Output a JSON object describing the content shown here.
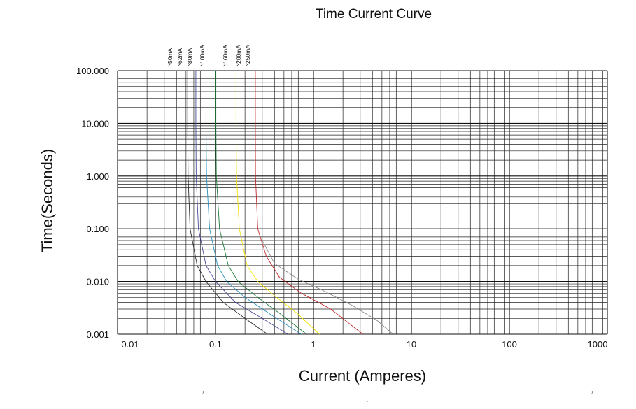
{
  "chart_data": {
    "type": "line",
    "title": "Time Current Curve",
    "xlabel": "Current (Amperes)",
    "ylabel": "Time(Seconds)",
    "x_scale": "log",
    "y_scale": "log",
    "xlim": [
      0.01,
      1000
    ],
    "ylim": [
      0.001,
      100
    ],
    "grid": true,
    "x_ticks": [
      {
        "value": 0.01,
        "label": "0.01"
      },
      {
        "value": 0.1,
        "label": "0.1"
      },
      {
        "value": 1,
        "label": "1"
      },
      {
        "value": 10,
        "label": "10"
      },
      {
        "value": 100,
        "label": "100"
      },
      {
        "value": 1000,
        "label": "1000"
      }
    ],
    "y_ticks": [
      {
        "value": 100,
        "label": "100.000"
      },
      {
        "value": 10,
        "label": "10.000"
      },
      {
        "value": 1,
        "label": "1.000"
      },
      {
        "value": 0.1,
        "label": "0.100"
      },
      {
        "value": 0.01,
        "label": "0.010"
      },
      {
        "value": 0.001,
        "label": "0.001"
      }
    ],
    "series": [
      {
        "name": "50mA",
        "color": "#2a2a2a",
        "points": [
          [
            0.052,
            100
          ],
          [
            0.052,
            10
          ],
          [
            0.0525,
            1
          ],
          [
            0.055,
            0.1
          ],
          [
            0.065,
            0.02
          ],
          [
            0.08,
            0.01
          ],
          [
            0.12,
            0.004
          ],
          [
            0.2,
            0.002
          ],
          [
            0.34,
            0.001
          ]
        ]
      },
      {
        "name": "62mA",
        "color": "#4a4a9a",
        "points": [
          [
            0.063,
            100
          ],
          [
            0.063,
            10
          ],
          [
            0.0635,
            1
          ],
          [
            0.067,
            0.1
          ],
          [
            0.08,
            0.02
          ],
          [
            0.1,
            0.01
          ],
          [
            0.16,
            0.004
          ],
          [
            0.3,
            0.002
          ],
          [
            0.55,
            0.001
          ]
        ]
      },
      {
        "name": "80mA",
        "color": "#2a8fbf",
        "points": [
          [
            0.08,
            100
          ],
          [
            0.08,
            10
          ],
          [
            0.081,
            1
          ],
          [
            0.087,
            0.1
          ],
          [
            0.105,
            0.02
          ],
          [
            0.13,
            0.01
          ],
          [
            0.2,
            0.005
          ],
          [
            0.35,
            0.0025
          ],
          [
            0.75,
            0.001
          ]
        ]
      },
      {
        "name": "100mA",
        "color": "#1f7a3a",
        "points": [
          [
            0.101,
            100
          ],
          [
            0.101,
            10
          ],
          [
            0.102,
            1
          ],
          [
            0.11,
            0.1
          ],
          [
            0.135,
            0.02
          ],
          [
            0.17,
            0.01
          ],
          [
            0.27,
            0.005
          ],
          [
            0.45,
            0.0025
          ],
          [
            0.85,
            0.001
          ]
        ]
      },
      {
        "name": "160mA",
        "color": "#f2e200",
        "points": [
          [
            0.162,
            100
          ],
          [
            0.162,
            10
          ],
          [
            0.164,
            1
          ],
          [
            0.175,
            0.1
          ],
          [
            0.21,
            0.02
          ],
          [
            0.27,
            0.01
          ],
          [
            0.42,
            0.005
          ],
          [
            0.68,
            0.0025
          ],
          [
            1.15,
            0.001
          ]
        ]
      },
      {
        "name": "200mA",
        "color": "#c0282a",
        "points": [
          [
            0.255,
            100
          ],
          [
            0.255,
            10
          ],
          [
            0.256,
            1
          ],
          [
            0.27,
            0.1
          ],
          [
            0.33,
            0.03
          ],
          [
            0.45,
            0.012
          ],
          [
            0.75,
            0.006
          ],
          [
            1.5,
            0.003
          ],
          [
            3.2,
            0.001
          ]
        ]
      },
      {
        "name": "250mA",
        "color": "#888888",
        "points": [
          [
            0.3,
            0.06
          ],
          [
            0.4,
            0.022
          ],
          [
            0.7,
            0.011
          ],
          [
            1.2,
            0.007
          ],
          [
            2.5,
            0.0035
          ],
          [
            4.5,
            0.0018
          ],
          [
            6.5,
            0.001
          ]
        ]
      }
    ]
  },
  "stray_marks": [
    ",",
    ".",
    ","
  ]
}
